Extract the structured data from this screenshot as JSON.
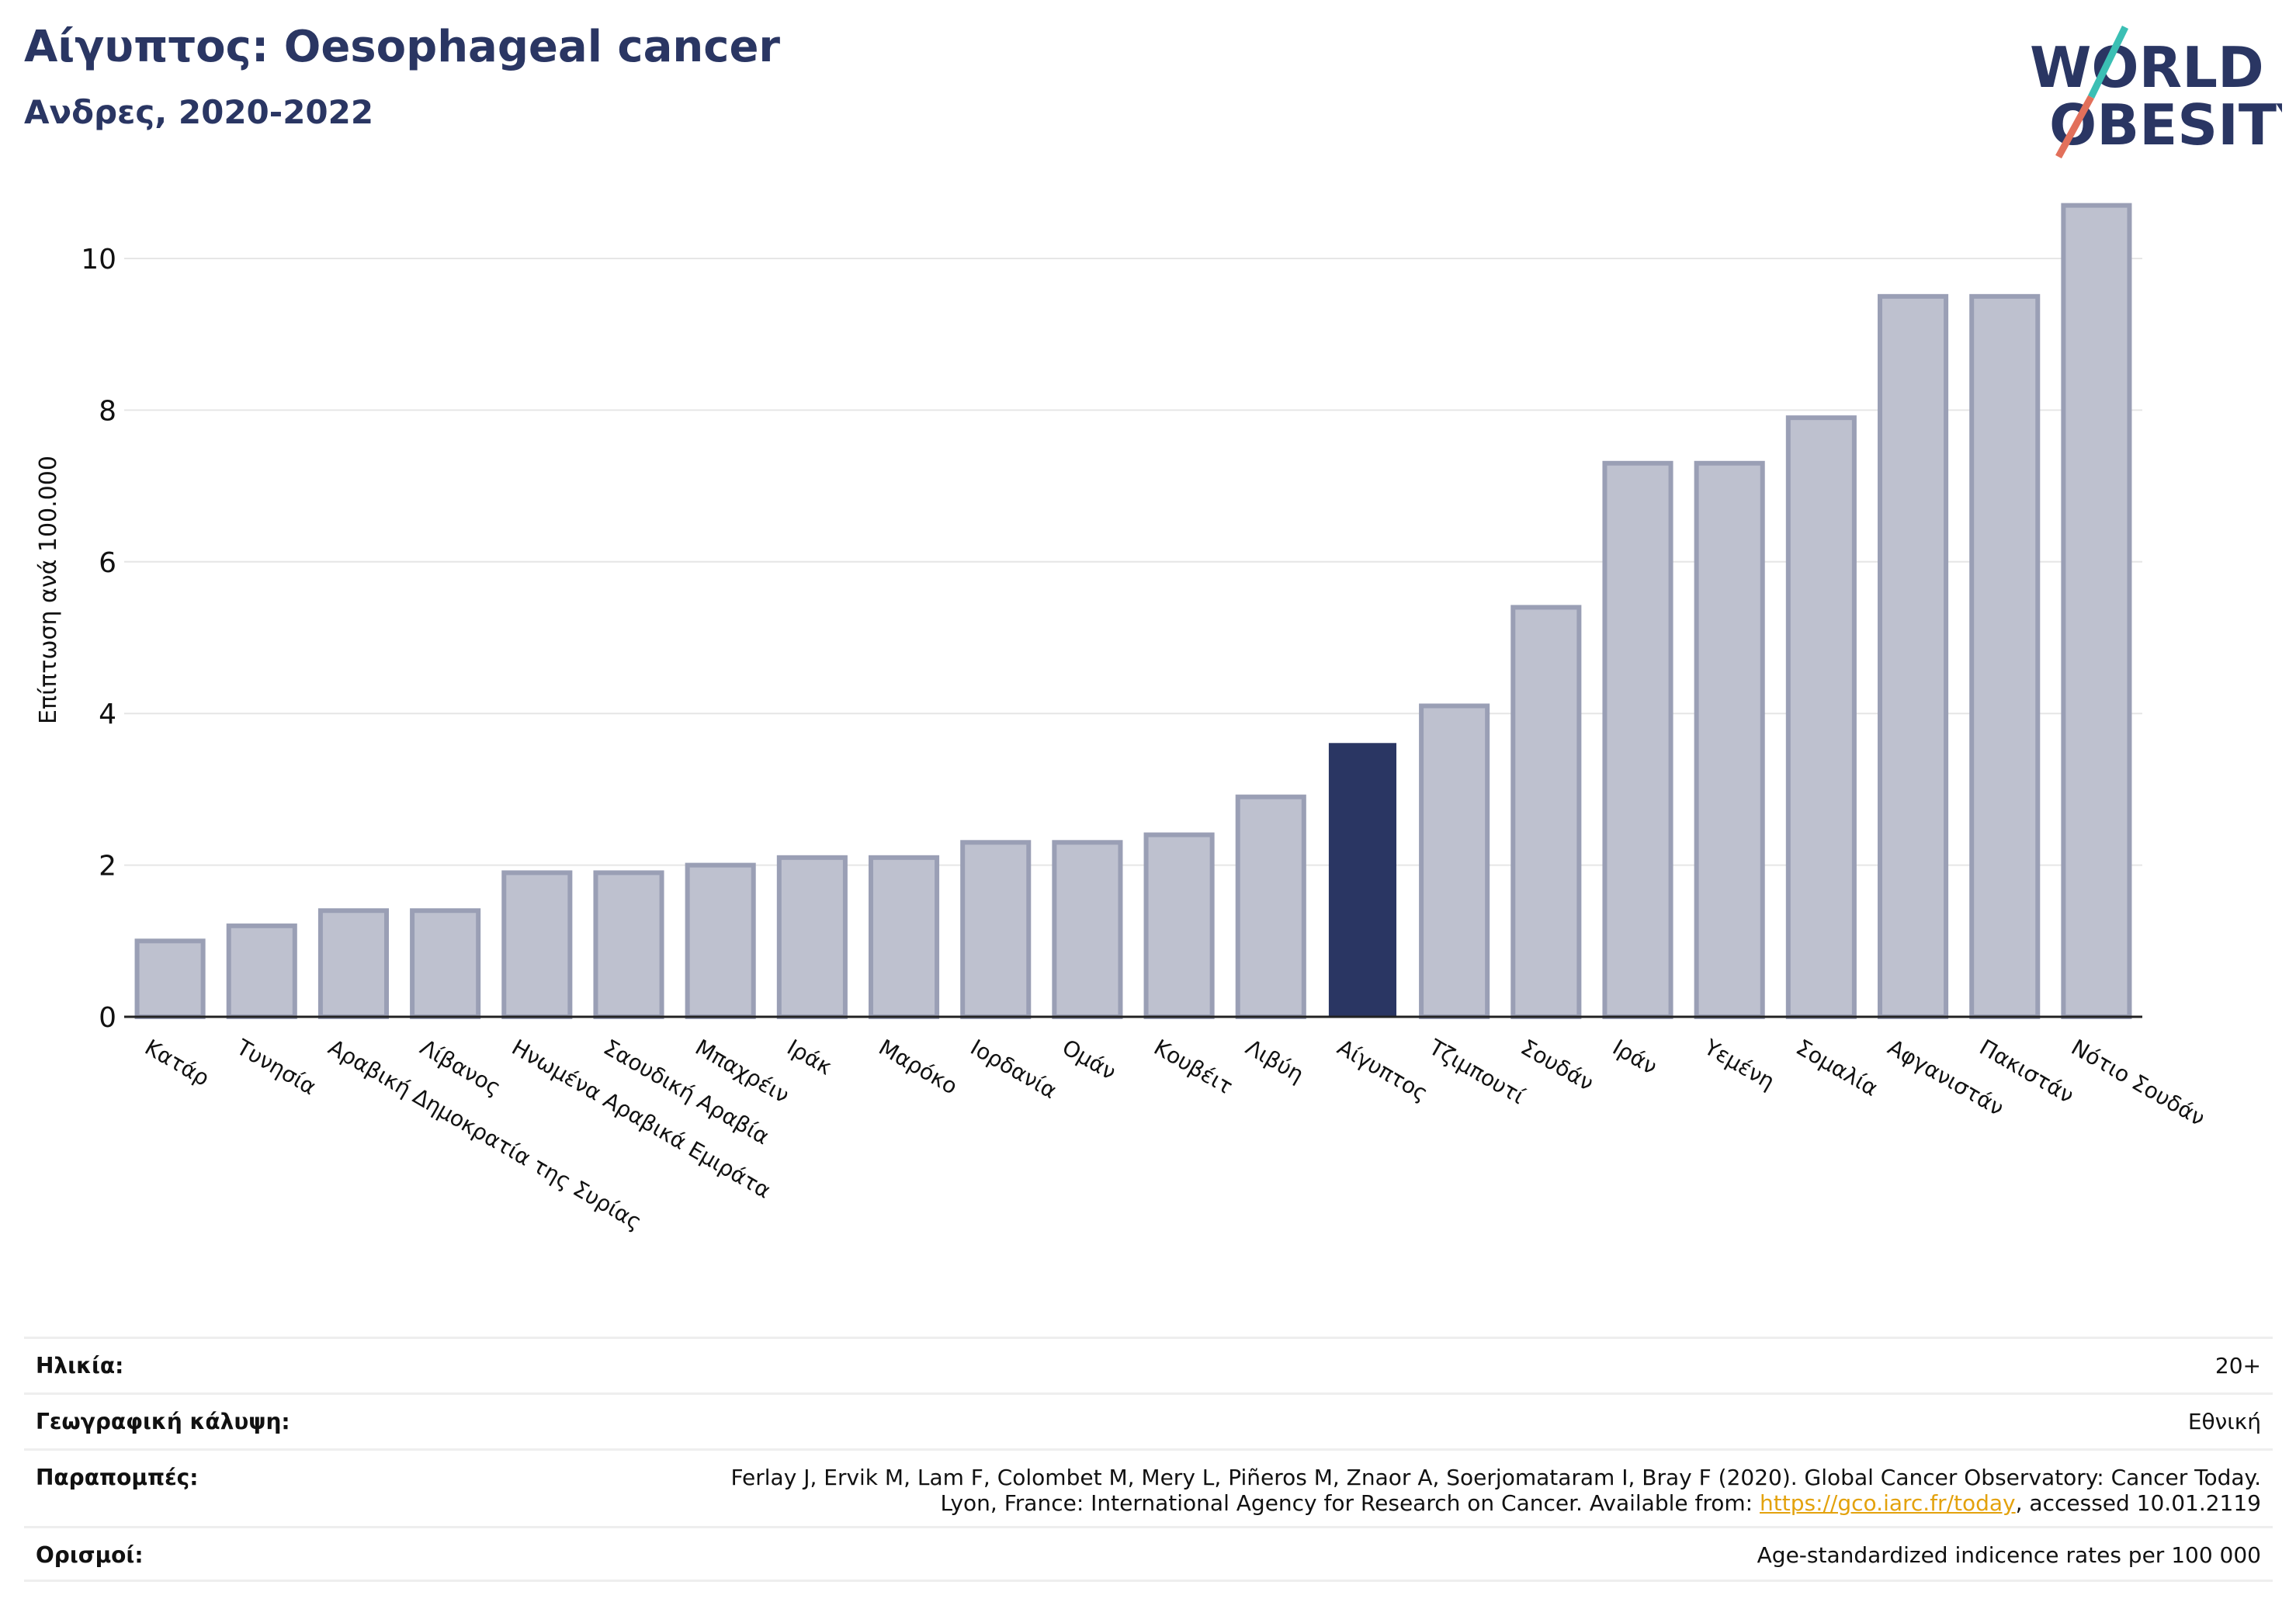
{
  "header": {
    "title": "Αίγυπτος: Oesophageal cancer",
    "subtitle": "Ανδρες, 2020-2022"
  },
  "logo": {
    "line1": "WORLD",
    "line2": "OBESITY"
  },
  "colors": {
    "highlight": "#2a3663",
    "bar_fill": "#bec1cf",
    "bar_stroke": "#9a9fb5",
    "title": "#2a3663",
    "logo_teal": "#3bbfb4",
    "logo_red": "#e2705b"
  },
  "chart_data": {
    "type": "bar",
    "ylabel": "Επίπτωση ανά 100.000",
    "ylim": [
      0,
      11
    ],
    "yticks": [
      0,
      2,
      4,
      6,
      8,
      10
    ],
    "grid": true,
    "highlight_category": "Αίγυπτος",
    "categories": [
      "Κατάρ",
      "Τυνησία",
      "Αραβική Δημοκρατία της Συρίας",
      "Λίβανος",
      "Ηνωμένα Αραβικά Εμιράτα",
      "Σαουδική Αραβία",
      "Μπαχρέιν",
      "Ιράκ",
      "Μαρόκο",
      "Ιορδανία",
      "Ομάν",
      "Κουβέιτ",
      "Λιβύη",
      "Αίγυπτος",
      "Τζιμπουτί",
      "Σουδάν",
      "Ιράν",
      "Υεμένη",
      "Σομαλία",
      "Αφγανιστάν",
      "Πακιστάν",
      "Νότιο Σουδάν"
    ],
    "values": [
      1.0,
      1.2,
      1.4,
      1.4,
      1.9,
      1.9,
      2.0,
      2.1,
      2.1,
      2.3,
      2.3,
      2.4,
      2.9,
      3.6,
      4.1,
      5.4,
      7.3,
      7.3,
      7.9,
      9.5,
      9.5,
      10.7
    ]
  },
  "meta": {
    "age": {
      "label": "Ηλικία:",
      "value": "20+"
    },
    "coverage": {
      "label": "Γεωγραφική κάλυψη:",
      "value": "Εθνική"
    },
    "references": {
      "label": "Παραπομπές:",
      "line1": "Ferlay J, Ervik M, Lam F, Colombet M, Mery L, Piñeros M, Znaor A, Soerjomataram I, Bray F (2020). Global Cancer Observatory: Cancer Today.",
      "line2_prefix": "Lyon, France: International Agency for Research on Cancer. Available from: ",
      "link": "https://gco.iarc.fr/today",
      "line2_suffix": ", accessed 10.01.2119"
    },
    "definitions": {
      "label": "Ορισμοί:",
      "value": "Age-standardized indicence rates per 100 000"
    }
  }
}
